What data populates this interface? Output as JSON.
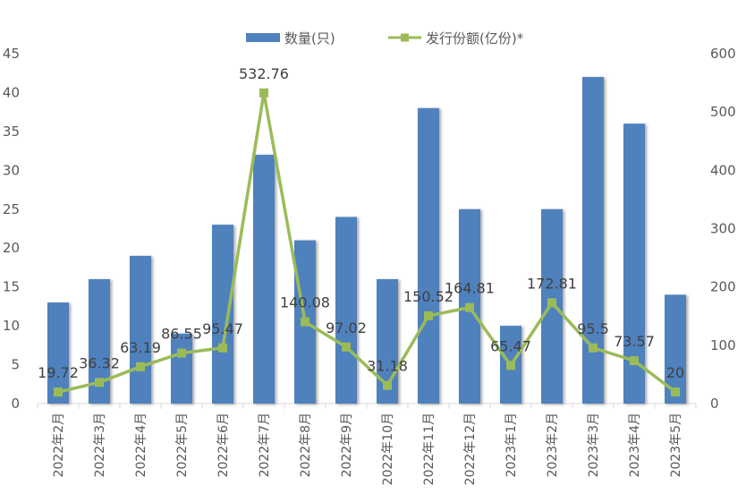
{
  "chart_data": {
    "type": "bar",
    "categories": [
      "2022年2月",
      "2022年3月",
      "2022年4月",
      "2022年5月",
      "2022年6月",
      "2022年7月",
      "2022年8月",
      "2022年9月",
      "2022年10月",
      "2022年11月",
      "2022年12月",
      "2023年1月",
      "2023年2月",
      "2023年3月",
      "2023年4月",
      "2023年5月"
    ],
    "series": [
      {
        "name": "数量(只)",
        "type": "bar",
        "axis": "left",
        "color": "#4F81BD",
        "values": [
          13,
          16,
          19,
          9,
          23,
          32,
          21,
          24,
          16,
          38,
          25,
          10,
          25,
          42,
          36,
          14
        ]
      },
      {
        "name": "发行份额(亿份)*",
        "type": "line",
        "axis": "right",
        "color": "#9BBB59",
        "values": [
          19.72,
          36.32,
          63.19,
          86.55,
          95.47,
          532.76,
          140.08,
          97.02,
          31.18,
          150.52,
          164.81,
          65.47,
          172.81,
          95.5,
          73.57,
          20
        ],
        "labels": [
          "19.72",
          "36.32",
          "63.19",
          "86.55",
          "95.47",
          "532.76",
          "140.08",
          "97.02",
          "31.18",
          "150.52",
          "164.81",
          "65.47",
          "172.81",
          "95.5",
          "73.57",
          "20"
        ]
      }
    ],
    "y_left": {
      "min": 0,
      "max": 45,
      "ticks": [
        "0",
        "5",
        "10",
        "15",
        "20",
        "25",
        "30",
        "35",
        "40",
        "45"
      ]
    },
    "y_right": {
      "min": 0,
      "max": 600,
      "ticks": [
        "0",
        "100",
        "200",
        "300",
        "400",
        "500",
        "600"
      ]
    },
    "legend": "top",
    "grid": false
  }
}
